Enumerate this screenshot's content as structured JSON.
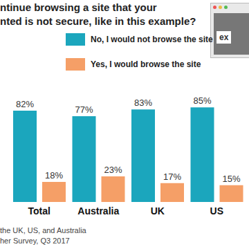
{
  "chart_data": {
    "type": "bar",
    "title": "ntinue browsing a site that your\nnted is not secure, like in this example?",
    "categories": [
      "Total",
      "Australia",
      "UK",
      "US"
    ],
    "series": [
      {
        "name": "No, I would not browse the site",
        "color": "#1ba6bd",
        "values": [
          82,
          77,
          83,
          85
        ],
        "value_labels": [
          "82%",
          "77%",
          "83%",
          "85%"
        ]
      },
      {
        "name": "Yes, I would browse the site",
        "color": "#f59f67",
        "values": [
          18,
          23,
          17,
          15
        ],
        "value_labels": [
          "18%",
          "23%",
          "17%",
          "15%"
        ]
      }
    ],
    "ylim": [
      0,
      100
    ],
    "tick_labels": "x",
    "data_labels": true,
    "legend": "top",
    "annotations": [
      "ex"
    ],
    "footnote": [
      "the UK, US, and Australia",
      "her Survey, Q3 2017"
    ]
  }
}
